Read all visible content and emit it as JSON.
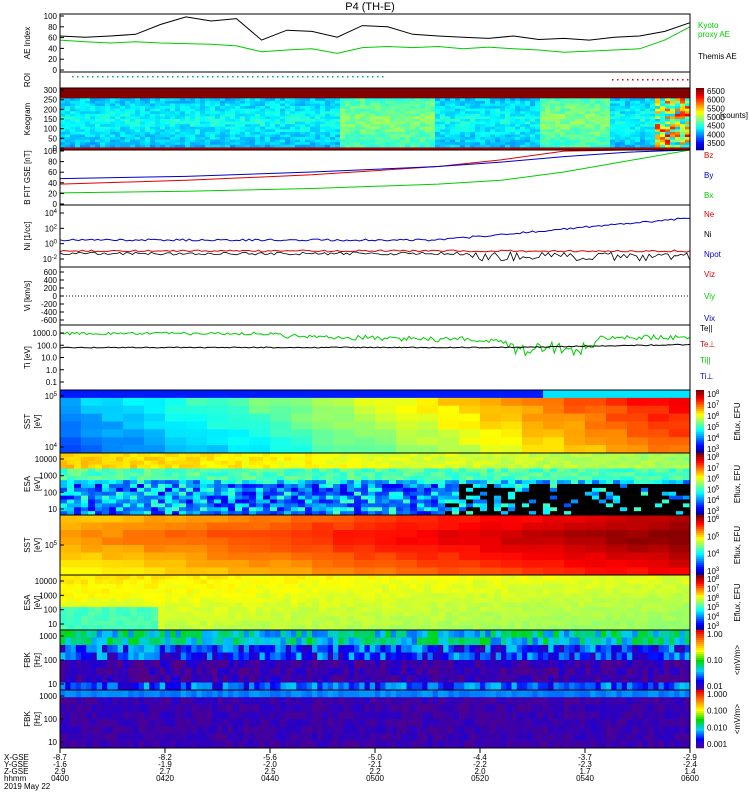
{
  "title": "P4 (TH-E)",
  "date_label": "2019 May 22",
  "colors": {
    "black": "#000000",
    "red": "#e00000",
    "green": "#00cc00",
    "blue": "#0000cc"
  },
  "chart_data": [
    {
      "type": "line",
      "panel": "ae",
      "ylabel": "AE Index",
      "ylim": [
        0,
        100
      ],
      "yticks": [
        "100",
        "80",
        "60",
        "40",
        "20",
        "0"
      ],
      "series": [
        {
          "name": "Kyoto proxy AE",
          "color": "#00cc00",
          "x": [
            0,
            4,
            8,
            12,
            16,
            20,
            24,
            28,
            32,
            36,
            40,
            44,
            48,
            52,
            56,
            60,
            64,
            68,
            72,
            76,
            80,
            84,
            88,
            92,
            96,
            100
          ],
          "values": [
            55,
            52,
            50,
            52,
            50,
            49,
            48,
            45,
            35,
            38,
            40,
            32,
            42,
            44,
            42,
            44,
            40,
            43,
            40,
            38,
            34,
            36,
            38,
            40,
            55,
            78
          ]
        },
        {
          "name": "Themis AE",
          "color": "#000000",
          "x": [
            0,
            4,
            8,
            12,
            16,
            20,
            24,
            28,
            32,
            36,
            40,
            44,
            48,
            52,
            56,
            60,
            64,
            68,
            72,
            76,
            80,
            84,
            88,
            92,
            96,
            100
          ],
          "values": [
            62,
            60,
            62,
            65,
            82,
            95,
            88,
            92,
            55,
            72,
            70,
            60,
            80,
            78,
            65,
            62,
            60,
            58,
            62,
            56,
            58,
            55,
            60,
            62,
            70,
            85
          ]
        }
      ]
    },
    {
      "type": "scatter",
      "panel": "roi",
      "ylabel": "ROI"
    },
    {
      "type": "heatmap",
      "panel": "keogram",
      "ylabel": "Keogram",
      "yticks": [
        "300",
        "250",
        "200",
        "150",
        "100",
        "50",
        "0"
      ],
      "colorbar": {
        "label": "[counts]",
        "ticks": [
          "6500",
          "6000",
          "5500",
          "5000",
          "4500",
          "4000",
          "3500"
        ]
      }
    },
    {
      "type": "line",
      "panel": "bfield",
      "ylabel": "B FIT GSE [nT]",
      "ylim": [
        0,
        100
      ],
      "yticks": [
        "100",
        "80",
        "60",
        "40",
        "20",
        "0"
      ],
      "series": [
        {
          "name": "Bz",
          "color": "#e00000",
          "x": [
            0,
            20,
            40,
            60,
            70,
            80,
            90,
            100
          ],
          "values": [
            38,
            45,
            55,
            70,
            82,
            98,
            100,
            100
          ]
        },
        {
          "name": "By",
          "color": "#0000cc",
          "x": [
            0,
            20,
            40,
            60,
            70,
            80,
            90,
            100
          ],
          "values": [
            48,
            52,
            60,
            70,
            78,
            88,
            96,
            100
          ]
        },
        {
          "name": "Bx",
          "color": "#00cc00",
          "x": [
            0,
            20,
            40,
            60,
            70,
            80,
            90,
            100
          ],
          "values": [
            22,
            25,
            30,
            38,
            45,
            60,
            80,
            100
          ]
        }
      ]
    },
    {
      "type": "line",
      "panel": "density",
      "ylabel": "Ni [1/cc]",
      "log": true,
      "yticks": [
        "10^4",
        "10^2",
        "10^0",
        "10^-2"
      ],
      "series": [
        {
          "name": "Ne",
          "color": "#e00000"
        },
        {
          "name": "Ni",
          "color": "#000000"
        },
        {
          "name": "Npot",
          "color": "#0000cc"
        }
      ]
    },
    {
      "type": "line",
      "panel": "velocity",
      "ylabel": "Vi [km/s]",
      "ylim": [
        -600,
        600
      ],
      "yticks": [
        "600",
        "400",
        "200",
        "0",
        "-200",
        "-400",
        "-600"
      ],
      "series": [
        {
          "name": "Viz",
          "color": "#e00000"
        },
        {
          "name": "Viy",
          "color": "#00cc00"
        },
        {
          "name": "Vix",
          "color": "#0000cc"
        }
      ]
    },
    {
      "type": "line",
      "panel": "temperature",
      "ylabel": "Ti [eV]",
      "log": true,
      "yticks": [
        "1000.0",
        "100.0",
        "10.0",
        "1.0",
        "0.1"
      ],
      "series": [
        {
          "name": "Te||",
          "color": "#000000"
        },
        {
          "name": "Te⊥",
          "color": "#e00000"
        },
        {
          "name": "Ti||",
          "color": "#00cc00"
        },
        {
          "name": "Ti⊥",
          "color": "#0000cc"
        }
      ]
    },
    {
      "type": "heatmap",
      "panel": "sst_e",
      "ylabel": "SST",
      "sublabel": "[eV]",
      "yticks": [
        "10^5",
        "10^4"
      ],
      "colorbar": {
        "label": "Eflux, EFU",
        "ticks": [
          "10^8",
          "10^7",
          "10^6",
          "10^5",
          "10^4",
          "10^3"
        ]
      }
    },
    {
      "type": "heatmap",
      "panel": "esa_e",
      "ylabel": "ESA",
      "sublabel": "[eV]",
      "yticks": [
        "10000",
        "1000",
        "100",
        "10"
      ],
      "colorbar": {
        "label": "Eflux, EFU",
        "ticks": [
          "10^8",
          "10^7",
          "10^6",
          "10^5",
          "10^4",
          "10^3"
        ]
      }
    },
    {
      "type": "heatmap",
      "panel": "sst_i",
      "ylabel": "SST",
      "sublabel": "[eV]",
      "yticks": [
        "10^5"
      ],
      "colorbar": {
        "label": "Eflux, EFU",
        "ticks": [
          "10^6",
          "10^5",
          "10^4",
          "10^3"
        ]
      }
    },
    {
      "type": "heatmap",
      "panel": "esa_i",
      "ylabel": "ESA",
      "sublabel": "[eV]",
      "yticks": [
        "10000",
        "1000",
        "100",
        "10"
      ],
      "colorbar": {
        "label": "Eflux, EFU",
        "ticks": [
          "10^8",
          "10^7",
          "10^6",
          "10^5",
          "10^4",
          "10^3"
        ]
      }
    },
    {
      "type": "heatmap",
      "panel": "fbk_e",
      "ylabel": "FBK",
      "sublabel": "[Hz]",
      "yticks": [
        "1000",
        "100",
        "10"
      ],
      "colorbar": {
        "label": "<mV/m>",
        "ticks": [
          "1.00",
          "0.10",
          "0.01"
        ]
      }
    },
    {
      "type": "heatmap",
      "panel": "fbk_b",
      "ylabel": "FBK",
      "sublabel": "[Hz]",
      "yticks": [
        "1000",
        "100",
        "10"
      ],
      "colorbar": {
        "label": "<mV/m>",
        "ticks": [
          "1.000",
          "0.100",
          "0.010",
          "0.001"
        ]
      }
    }
  ],
  "xaxis": {
    "row_labels": [
      "X-GSE",
      "Y-GSE",
      "Z-GSE",
      "hhmm"
    ],
    "columns": [
      {
        "x": "-8.7",
        "y": "-1.6",
        "z": "2.9",
        "t": "0400"
      },
      {
        "x": "-8.2",
        "y": "-1.9",
        "z": "2.7",
        "t": "0420"
      },
      {
        "x": "-5.6",
        "y": "-2.0",
        "z": "2.5",
        "t": "0440"
      },
      {
        "x": "-5.0",
        "y": "-2.1",
        "z": "2.2",
        "t": "0500"
      },
      {
        "x": "-4.4",
        "y": "-2.2",
        "z": "2.0",
        "t": "0520"
      },
      {
        "x": "-3.7",
        "y": "-2.3",
        "z": "1.7",
        "t": "0540"
      },
      {
        "x": "-2.9",
        "y": "-2.4",
        "z": "1.4",
        "t": "0600"
      }
    ]
  }
}
